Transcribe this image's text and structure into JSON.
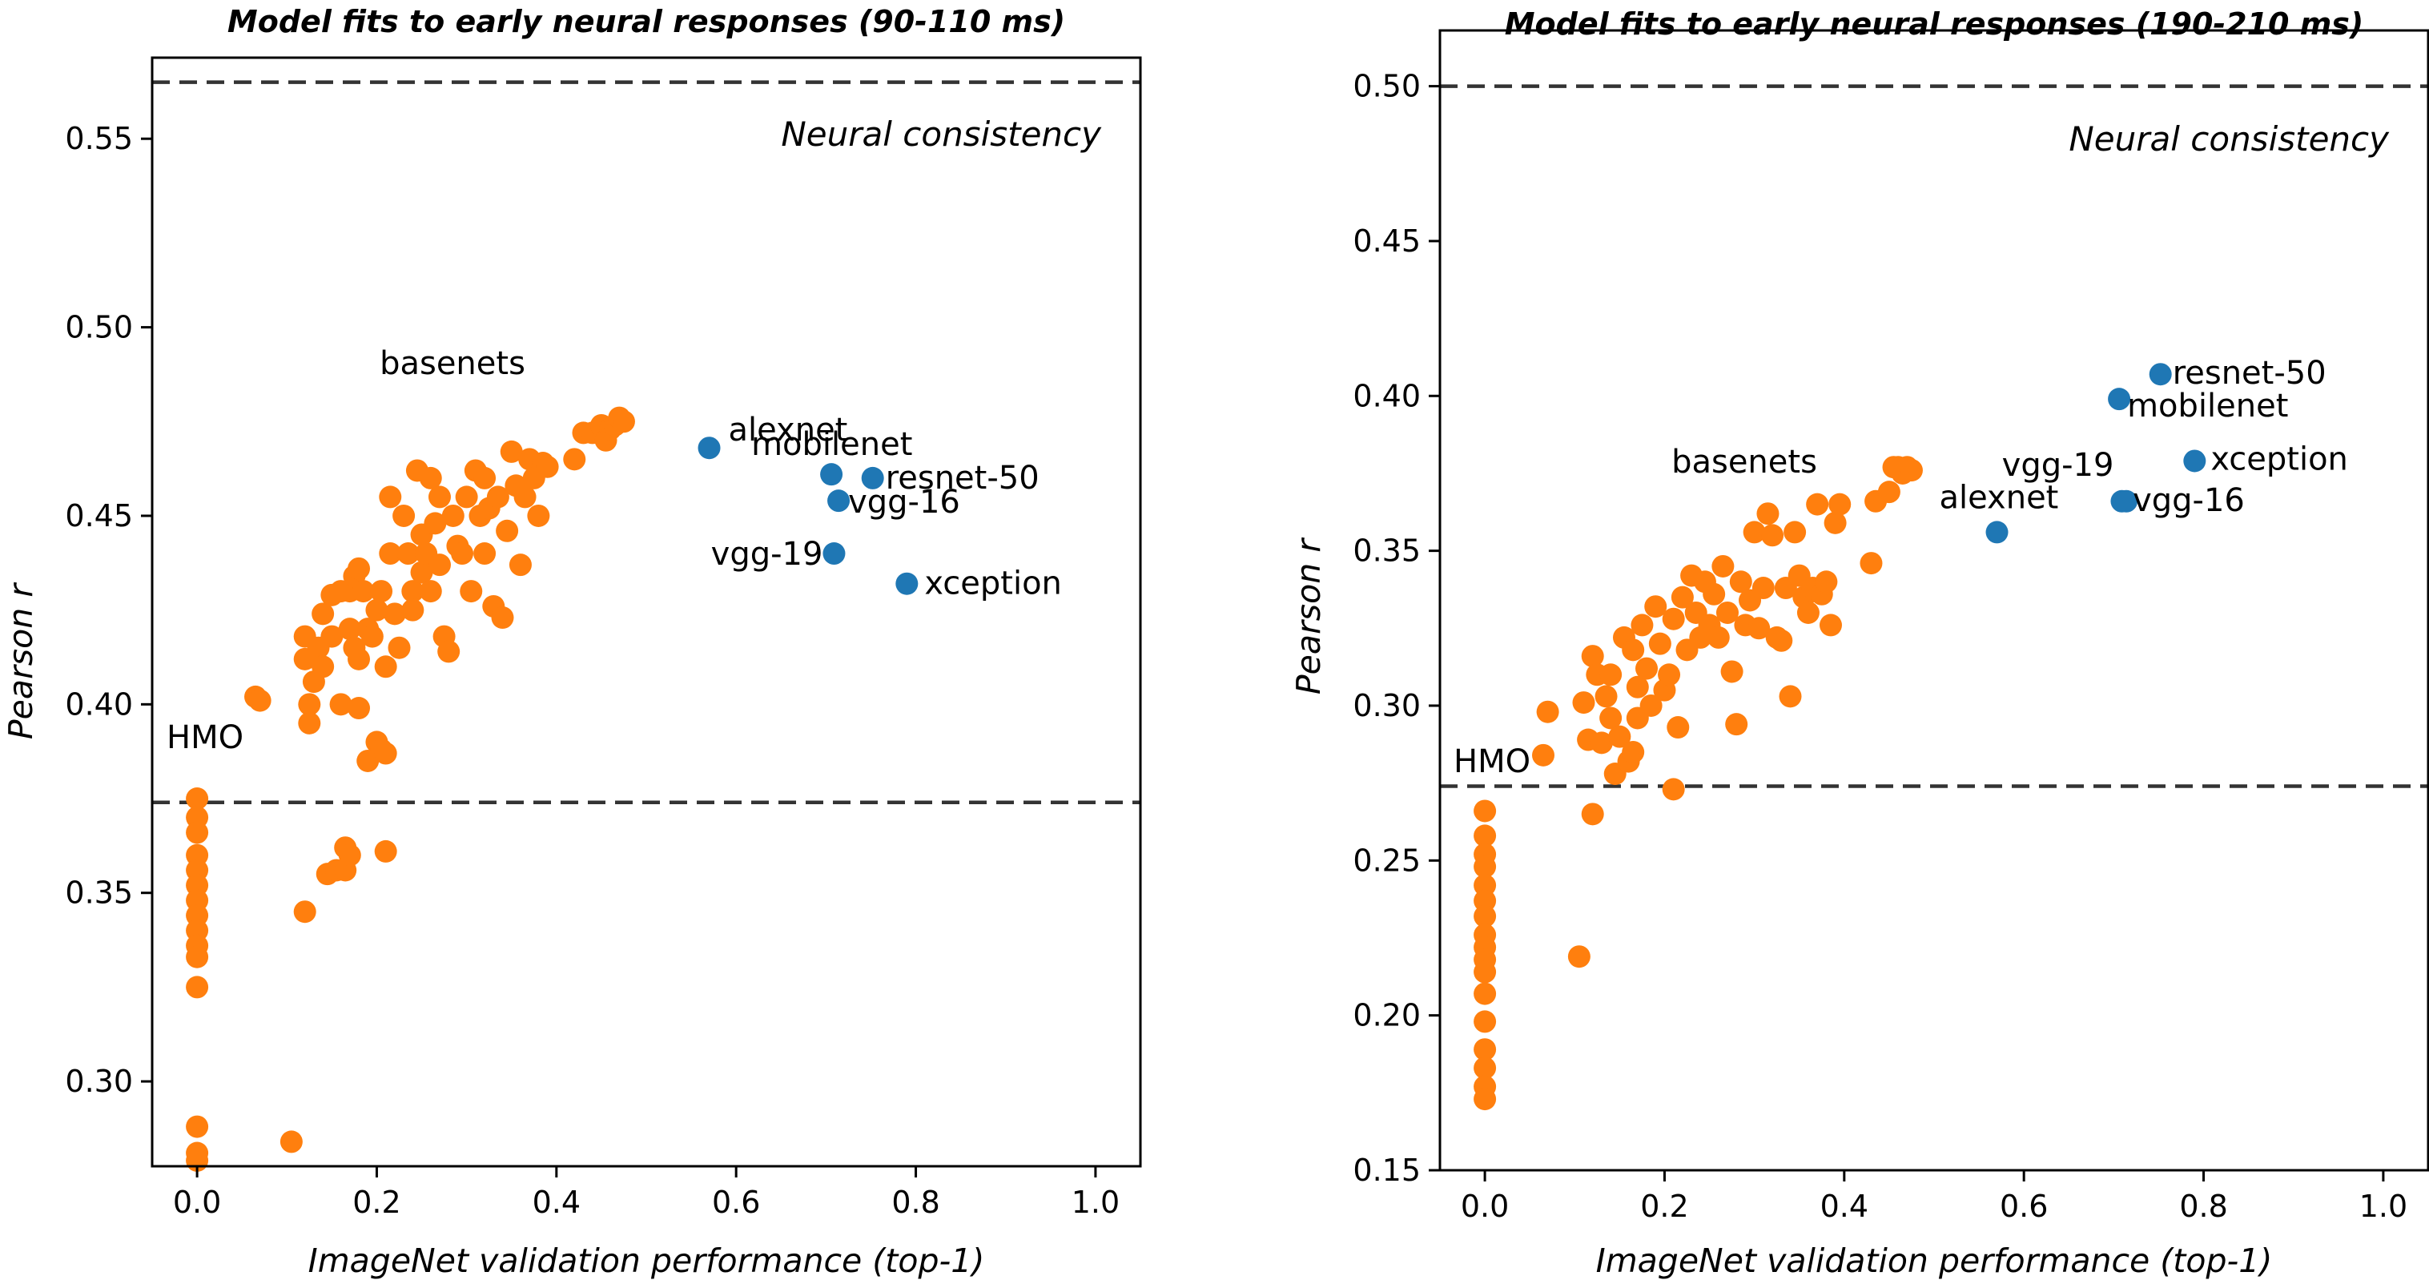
{
  "chart_data": [
    {
      "type": "scatter",
      "title": "Model fits to early neural responses (90-110 ms)",
      "xlabel": "ImageNet validation performance (top-1)",
      "ylabel": "Pearson r",
      "xlim": [
        -0.05,
        1.05
      ],
      "ylim": [
        0.2775,
        0.5715
      ],
      "xticks": [
        0.0,
        0.2,
        0.4,
        0.6,
        0.8,
        1.0
      ],
      "xtick_labels": [
        "0.0",
        "0.2",
        "0.4",
        "0.6",
        "0.8",
        "1.0"
      ],
      "yticks": [
        0.3,
        0.35,
        0.4,
        0.45,
        0.5,
        0.55
      ],
      "ytick_labels": [
        "0.30",
        "0.35",
        "0.40",
        "0.45",
        "0.50",
        "0.55"
      ],
      "grid": false,
      "reference_lines": [
        {
          "label": "Neural consistency",
          "y": 0.565,
          "italic": true
        },
        {
          "label": "HMO",
          "y": 0.374,
          "italic": false
        }
      ],
      "group_label": "basenets",
      "series": [
        {
          "color": "#ff7f0e",
          "points": [
            [
              0.0,
              0.375
            ],
            [
              0.0,
              0.37
            ],
            [
              0.0,
              0.366
            ],
            [
              0.0,
              0.36
            ],
            [
              0.0,
              0.356
            ],
            [
              0.0,
              0.352
            ],
            [
              0.0,
              0.348
            ],
            [
              0.0,
              0.344
            ],
            [
              0.0,
              0.34
            ],
            [
              0.0,
              0.336
            ],
            [
              0.0,
              0.333
            ],
            [
              0.0,
              0.325
            ],
            [
              0.0,
              0.288
            ],
            [
              0.0,
              0.281
            ],
            [
              0.0,
              0.279
            ],
            [
              0.065,
              0.402
            ],
            [
              0.07,
              0.401
            ],
            [
              0.105,
              0.284
            ],
            [
              0.12,
              0.345
            ],
            [
              0.12,
              0.418
            ],
            [
              0.12,
              0.412
            ],
            [
              0.125,
              0.4
            ],
            [
              0.125,
              0.395
            ],
            [
              0.13,
              0.406
            ],
            [
              0.135,
              0.415
            ],
            [
              0.14,
              0.41
            ],
            [
              0.14,
              0.424
            ],
            [
              0.145,
              0.355
            ],
            [
              0.15,
              0.418
            ],
            [
              0.15,
              0.429
            ],
            [
              0.155,
              0.356
            ],
            [
              0.16,
              0.43
            ],
            [
              0.16,
              0.4
            ],
            [
              0.165,
              0.362
            ],
            [
              0.165,
              0.356
            ],
            [
              0.17,
              0.36
            ],
            [
              0.17,
              0.43
            ],
            [
              0.17,
              0.42
            ],
            [
              0.175,
              0.434
            ],
            [
              0.175,
              0.415
            ],
            [
              0.18,
              0.436
            ],
            [
              0.18,
              0.412
            ],
            [
              0.18,
              0.399
            ],
            [
              0.185,
              0.43
            ],
            [
              0.19,
              0.385
            ],
            [
              0.19,
              0.42
            ],
            [
              0.195,
              0.418
            ],
            [
              0.2,
              0.39
            ],
            [
              0.2,
              0.425
            ],
            [
              0.205,
              0.43
            ],
            [
              0.205,
              0.388
            ],
            [
              0.21,
              0.387
            ],
            [
              0.21,
              0.41
            ],
            [
              0.21,
              0.361
            ],
            [
              0.215,
              0.44
            ],
            [
              0.215,
              0.455
            ],
            [
              0.22,
              0.424
            ],
            [
              0.225,
              0.415
            ],
            [
              0.23,
              0.45
            ],
            [
              0.235,
              0.44
            ],
            [
              0.24,
              0.43
            ],
            [
              0.24,
              0.425
            ],
            [
              0.245,
              0.462
            ],
            [
              0.25,
              0.445
            ],
            [
              0.25,
              0.435
            ],
            [
              0.255,
              0.44
            ],
            [
              0.26,
              0.46
            ],
            [
              0.26,
              0.43
            ],
            [
              0.265,
              0.448
            ],
            [
              0.27,
              0.455
            ],
            [
              0.27,
              0.437
            ],
            [
              0.275,
              0.418
            ],
            [
              0.28,
              0.414
            ],
            [
              0.285,
              0.45
            ],
            [
              0.29,
              0.442
            ],
            [
              0.295,
              0.44
            ],
            [
              0.3,
              0.455
            ],
            [
              0.305,
              0.43
            ],
            [
              0.31,
              0.462
            ],
            [
              0.315,
              0.45
            ],
            [
              0.32,
              0.46
            ],
            [
              0.32,
              0.44
            ],
            [
              0.325,
              0.452
            ],
            [
              0.33,
              0.426
            ],
            [
              0.335,
              0.455
            ],
            [
              0.34,
              0.423
            ],
            [
              0.345,
              0.446
            ],
            [
              0.35,
              0.467
            ],
            [
              0.355,
              0.458
            ],
            [
              0.36,
              0.437
            ],
            [
              0.365,
              0.455
            ],
            [
              0.37,
              0.465
            ],
            [
              0.375,
              0.46
            ],
            [
              0.38,
              0.45
            ],
            [
              0.385,
              0.464
            ],
            [
              0.39,
              0.463
            ],
            [
              0.42,
              0.465
            ],
            [
              0.43,
              0.472
            ],
            [
              0.44,
              0.472
            ],
            [
              0.45,
              0.474
            ],
            [
              0.455,
              0.47
            ],
            [
              0.46,
              0.473
            ],
            [
              0.465,
              0.474
            ],
            [
              0.47,
              0.476
            ],
            [
              0.475,
              0.475
            ]
          ]
        },
        {
          "color": "#1f77b4",
          "points": [
            [
              0.57,
              0.468
            ],
            [
              0.706,
              0.461
            ],
            [
              0.714,
              0.454
            ],
            [
              0.709,
              0.44
            ],
            [
              0.752,
              0.46
            ],
            [
              0.79,
              0.432
            ]
          ]
        }
      ],
      "annotations": [
        {
          "text": "alexnet",
          "x": 0.57,
          "y": 0.468
        },
        {
          "text": "mobilenet",
          "x": 0.706,
          "y": 0.461
        },
        {
          "text": "resnet-50",
          "x": 0.752,
          "y": 0.46
        },
        {
          "text": "vgg-16",
          "x": 0.714,
          "y": 0.454
        },
        {
          "text": "vgg-19",
          "x": 0.709,
          "y": 0.44
        },
        {
          "text": "xception",
          "x": 0.79,
          "y": 0.432
        },
        {
          "text": "basenets",
          "x": 0.3,
          "y": 0.49
        }
      ]
    },
    {
      "type": "scatter",
      "title": "Model fits to early neural responses (190-210 ms)",
      "xlabel": "ImageNet validation performance (top-1)",
      "ylabel": "Pearson r",
      "xlim": [
        -0.05,
        1.05
      ],
      "ylim": [
        0.15,
        0.518
      ],
      "xticks": [
        0.0,
        0.2,
        0.4,
        0.6,
        0.8,
        1.0
      ],
      "xtick_labels": [
        "0.0",
        "0.2",
        "0.4",
        "0.6",
        "0.8",
        "1.0"
      ],
      "yticks": [
        0.15,
        0.2,
        0.25,
        0.3,
        0.35,
        0.4,
        0.45,
        0.5
      ],
      "ytick_labels": [
        "0.15",
        "0.20",
        "0.25",
        "0.30",
        "0.35",
        "0.40",
        "0.45",
        "0.50"
      ],
      "grid": false,
      "reference_lines": [
        {
          "label": "Neural consistency",
          "y": 0.5,
          "italic": true
        },
        {
          "label": "HMO",
          "y": 0.274,
          "italic": false
        }
      ],
      "group_label": "basenets",
      "series": [
        {
          "color": "#ff7f0e",
          "points": [
            [
              0.0,
              0.266
            ],
            [
              0.0,
              0.258
            ],
            [
              0.0,
              0.252
            ],
            [
              0.0,
              0.248
            ],
            [
              0.0,
              0.242
            ],
            [
              0.0,
              0.237
            ],
            [
              0.0,
              0.232
            ],
            [
              0.0,
              0.226
            ],
            [
              0.0,
              0.222
            ],
            [
              0.0,
              0.218
            ],
            [
              0.0,
              0.214
            ],
            [
              0.0,
              0.207
            ],
            [
              0.0,
              0.198
            ],
            [
              0.0,
              0.189
            ],
            [
              0.0,
              0.183
            ],
            [
              0.0,
              0.177
            ],
            [
              0.0,
              0.173
            ],
            [
              0.065,
              0.284
            ],
            [
              0.07,
              0.298
            ],
            [
              0.105,
              0.219
            ],
            [
              0.11,
              0.301
            ],
            [
              0.115,
              0.289
            ],
            [
              0.12,
              0.316
            ],
            [
              0.12,
              0.265
            ],
            [
              0.125,
              0.31
            ],
            [
              0.13,
              0.288
            ],
            [
              0.135,
              0.303
            ],
            [
              0.14,
              0.296
            ],
            [
              0.14,
              0.31
            ],
            [
              0.145,
              0.278
            ],
            [
              0.15,
              0.29
            ],
            [
              0.155,
              0.322
            ],
            [
              0.16,
              0.282
            ],
            [
              0.165,
              0.318
            ],
            [
              0.165,
              0.285
            ],
            [
              0.17,
              0.306
            ],
            [
              0.17,
              0.296
            ],
            [
              0.175,
              0.326
            ],
            [
              0.18,
              0.312
            ],
            [
              0.185,
              0.3
            ],
            [
              0.19,
              0.332
            ],
            [
              0.195,
              0.32
            ],
            [
              0.2,
              0.305
            ],
            [
              0.205,
              0.31
            ],
            [
              0.21,
              0.328
            ],
            [
              0.21,
              0.273
            ],
            [
              0.215,
              0.293
            ],
            [
              0.22,
              0.335
            ],
            [
              0.225,
              0.318
            ],
            [
              0.23,
              0.342
            ],
            [
              0.235,
              0.33
            ],
            [
              0.24,
              0.322
            ],
            [
              0.245,
              0.34
            ],
            [
              0.25,
              0.326
            ],
            [
              0.255,
              0.336
            ],
            [
              0.26,
              0.322
            ],
            [
              0.265,
              0.345
            ],
            [
              0.27,
              0.33
            ],
            [
              0.275,
              0.311
            ],
            [
              0.28,
              0.294
            ],
            [
              0.285,
              0.34
            ],
            [
              0.29,
              0.326
            ],
            [
              0.295,
              0.334
            ],
            [
              0.3,
              0.356
            ],
            [
              0.305,
              0.325
            ],
            [
              0.31,
              0.338
            ],
            [
              0.315,
              0.362
            ],
            [
              0.32,
              0.355
            ],
            [
              0.325,
              0.322
            ],
            [
              0.33,
              0.321
            ],
            [
              0.335,
              0.338
            ],
            [
              0.34,
              0.303
            ],
            [
              0.345,
              0.356
            ],
            [
              0.35,
              0.342
            ],
            [
              0.355,
              0.335
            ],
            [
              0.36,
              0.33
            ],
            [
              0.365,
              0.338
            ],
            [
              0.37,
              0.365
            ],
            [
              0.375,
              0.336
            ],
            [
              0.38,
              0.34
            ],
            [
              0.385,
              0.326
            ],
            [
              0.39,
              0.359
            ],
            [
              0.395,
              0.365
            ],
            [
              0.43,
              0.346
            ],
            [
              0.435,
              0.366
            ],
            [
              0.45,
              0.369
            ],
            [
              0.455,
              0.377
            ],
            [
              0.46,
              0.377
            ],
            [
              0.465,
              0.375
            ],
            [
              0.47,
              0.377
            ],
            [
              0.475,
              0.376
            ]
          ]
        },
        {
          "color": "#1f77b4",
          "points": [
            [
              0.57,
              0.356
            ],
            [
              0.706,
              0.399
            ],
            [
              0.709,
              0.366
            ],
            [
              0.714,
              0.366
            ],
            [
              0.752,
              0.407
            ],
            [
              0.79,
              0.379
            ]
          ]
        }
      ],
      "annotations": [
        {
          "text": "resnet-50",
          "x": 0.752,
          "y": 0.407
        },
        {
          "text": "mobilenet",
          "x": 0.706,
          "y": 0.399
        },
        {
          "text": "xception",
          "x": 0.79,
          "y": 0.379
        },
        {
          "text": "vgg-19",
          "x": 0.709,
          "y": 0.366
        },
        {
          "text": "vgg-16",
          "x": 0.714,
          "y": 0.366
        },
        {
          "text": "alexnet",
          "x": 0.57,
          "y": 0.356
        },
        {
          "text": "basenets",
          "x": 0.3,
          "y": 0.38
        }
      ]
    }
  ]
}
